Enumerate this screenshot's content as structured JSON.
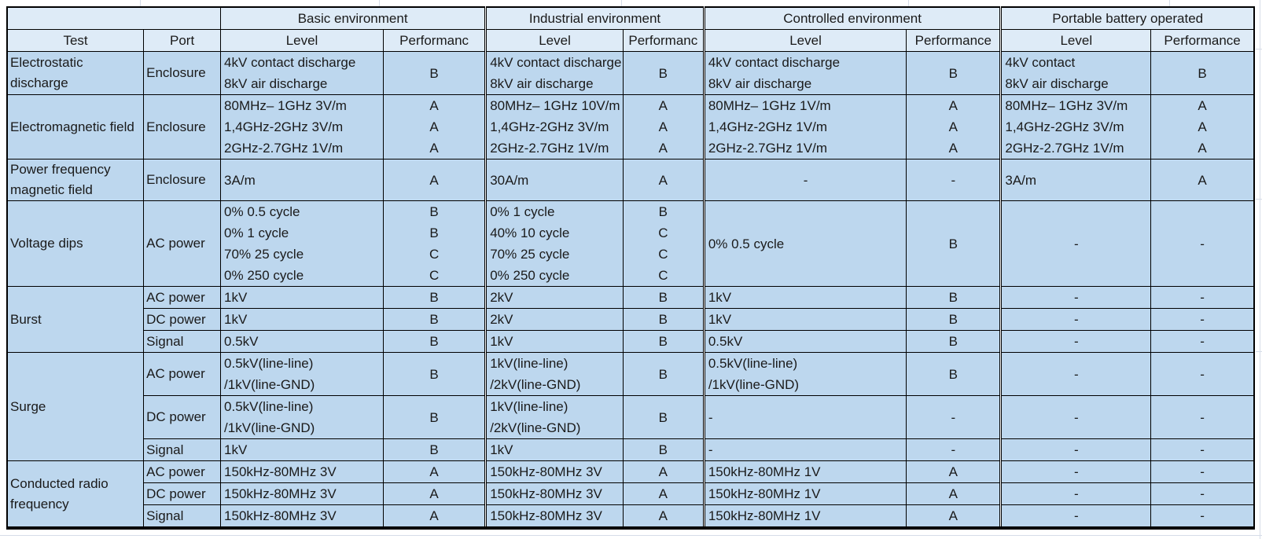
{
  "colors": {
    "header_fill": "#DEEBF7",
    "body_fill": "#BDD7EE",
    "border": "#000000"
  },
  "table": {
    "test_header": "Test",
    "port_header": "Port",
    "env_groups": [
      {
        "label": "Basic environment",
        "level_header": "Level",
        "perf_header": "Performanc"
      },
      {
        "label": "Industrial environment",
        "level_header": "Level",
        "perf_header": "Performanc"
      },
      {
        "label": "Controlled environment",
        "level_header": "Level",
        "perf_header": "Performance"
      },
      {
        "label": "Portable battery operated",
        "level_header": "Level",
        "perf_header": "Performance"
      }
    ],
    "tests": [
      {
        "name": "Electrostatic discharge",
        "rows": [
          {
            "port": "Enclosure",
            "groups": [
              {
                "level": [
                  "4kV contact discharge",
                  "8kV air discharge"
                ],
                "perf": [
                  "B"
                ]
              },
              {
                "level": [
                  "4kV contact discharge",
                  "8kV air discharge"
                ],
                "perf": [
                  "B"
                ]
              },
              {
                "level": [
                  "4kV contact discharge",
                  "8kV air discharge"
                ],
                "perf": [
                  "B"
                ]
              },
              {
                "level": [
                  "4kV contact",
                  "8kV air discharge"
                ],
                "perf": [
                  "B"
                ]
              }
            ]
          }
        ]
      },
      {
        "name": "Electromagnetic field",
        "rows": [
          {
            "port": "Enclosure",
            "groups": [
              {
                "level": [
                  "80MHz– 1GHz 3V/m",
                  "1,4GHz-2GHz 3V/m",
                  "2GHz-2.7GHz 1V/m"
                ],
                "perf": [
                  "A",
                  "A",
                  "A"
                ]
              },
              {
                "level": [
                  "80MHz– 1GHz 10V/m",
                  "1,4GHz-2GHz 3V/m",
                  "2GHz-2.7GHz 1V/m"
                ],
                "perf": [
                  "A",
                  "A",
                  "A"
                ]
              },
              {
                "level": [
                  "80MHz– 1GHz 1V/m",
                  "1,4GHz-2GHz 1V/m",
                  "2GHz-2.7GHz 1V/m"
                ],
                "perf": [
                  "A",
                  "A",
                  "A"
                ]
              },
              {
                "level": [
                  "80MHz– 1GHz 3V/m",
                  "1,4GHz-2GHz 3V/m",
                  "2GHz-2.7GHz 1V/m"
                ],
                "perf": [
                  "A",
                  "A",
                  "A"
                ]
              }
            ]
          }
        ]
      },
      {
        "name": "Power frequency magnetic field",
        "rows": [
          {
            "port": "Enclosure",
            "groups": [
              {
                "level": [
                  "3A/m"
                ],
                "perf": [
                  "A"
                ]
              },
              {
                "level": [
                  "30A/m"
                ],
                "perf": [
                  "A"
                ]
              },
              {
                "level": [
                  "-"
                ],
                "center": true,
                "perf": [
                  "-"
                ]
              },
              {
                "level": [
                  "3A/m"
                ],
                "perf": [
                  "A"
                ]
              }
            ]
          }
        ]
      },
      {
        "name": "Voltage dips",
        "rows": [
          {
            "port": "AC power",
            "groups": [
              {
                "level": [
                  "0% 0.5 cycle",
                  "0% 1 cycle",
                  "70% 25 cycle",
                  "0% 250 cycle"
                ],
                "perf": [
                  "B",
                  "B",
                  "C",
                  "C"
                ]
              },
              {
                "level": [
                  "0% 1 cycle",
                  "40% 10 cycle",
                  "70% 25 cycle",
                  "0% 250 cycle"
                ],
                "perf": [
                  "B",
                  "C",
                  "C",
                  "C"
                ]
              },
              {
                "level": [
                  "0% 0.5 cycle"
                ],
                "perf": [
                  "B"
                ]
              },
              {
                "level": [
                  "-"
                ],
                "center": true,
                "perf": [
                  "-"
                ]
              }
            ]
          }
        ]
      },
      {
        "name": "Burst",
        "rows": [
          {
            "port": "AC power",
            "groups": [
              {
                "level": [
                  "1kV"
                ],
                "perf": [
                  "B"
                ]
              },
              {
                "level": [
                  "2kV"
                ],
                "perf": [
                  "B"
                ]
              },
              {
                "level": [
                  "1kV"
                ],
                "perf": [
                  "B"
                ]
              },
              {
                "level": [
                  "-"
                ],
                "center": true,
                "perf": [
                  "-"
                ]
              }
            ]
          },
          {
            "port": "DC power",
            "groups": [
              {
                "level": [
                  "1kV"
                ],
                "perf": [
                  "B"
                ]
              },
              {
                "level": [
                  "2kV"
                ],
                "perf": [
                  "B"
                ]
              },
              {
                "level": [
                  "1kV"
                ],
                "perf": [
                  "B"
                ]
              },
              {
                "level": [
                  "-"
                ],
                "center": true,
                "perf": [
                  "-"
                ]
              }
            ]
          },
          {
            "port": "Signal",
            "groups": [
              {
                "level": [
                  "0.5kV"
                ],
                "perf": [
                  "B"
                ]
              },
              {
                "level": [
                  "1kV"
                ],
                "perf": [
                  "B"
                ]
              },
              {
                "level": [
                  "0.5kV"
                ],
                "perf": [
                  "B"
                ]
              },
              {
                "level": [
                  "-"
                ],
                "center": true,
                "perf": [
                  "-"
                ]
              }
            ]
          }
        ]
      },
      {
        "name": "Surge",
        "rows": [
          {
            "port": "AC power",
            "groups": [
              {
                "level": [
                  "0.5kV(line-line)",
                  "/1kV(line-GND)"
                ],
                "perf": [
                  "B"
                ]
              },
              {
                "level": [
                  "1kV(line-line)",
                  "/2kV(line-GND)"
                ],
                "perf": [
                  "B"
                ]
              },
              {
                "level": [
                  "0.5kV(line-line)",
                  "/1kV(line-GND)"
                ],
                "perf": [
                  "B"
                ]
              },
              {
                "level": [
                  "-"
                ],
                "center": true,
                "perf": [
                  "-"
                ]
              }
            ]
          },
          {
            "port": "DC power",
            "groups": [
              {
                "level": [
                  "0.5kV(line-line)",
                  "/1kV(line-GND)"
                ],
                "perf": [
                  "B"
                ]
              },
              {
                "level": [
                  "1kV(line-line)",
                  "/2kV(line-GND)"
                ],
                "perf": [
                  "B"
                ]
              },
              {
                "level": [
                  "-"
                ],
                "perf": [
                  "-"
                ]
              },
              {
                "level": [
                  "-"
                ],
                "center": true,
                "perf": [
                  "-"
                ]
              }
            ]
          },
          {
            "port": "Signal",
            "groups": [
              {
                "level": [
                  "1kV"
                ],
                "perf": [
                  "B"
                ]
              },
              {
                "level": [
                  "1kV"
                ],
                "perf": [
                  "B"
                ]
              },
              {
                "level": [
                  "-"
                ],
                "perf": [
                  "-"
                ]
              },
              {
                "level": [
                  "-"
                ],
                "center": true,
                "perf": [
                  "-"
                ]
              }
            ]
          }
        ]
      },
      {
        "name": "Conducted radio frequency",
        "rows": [
          {
            "port": "AC power",
            "groups": [
              {
                "level": [
                  "150kHz-80MHz 3V"
                ],
                "perf": [
                  "A"
                ]
              },
              {
                "level": [
                  "150kHz-80MHz 3V"
                ],
                "perf": [
                  "A"
                ]
              },
              {
                "level": [
                  "150kHz-80MHz 1V"
                ],
                "perf": [
                  "A"
                ]
              },
              {
                "level": [
                  "-"
                ],
                "center": true,
                "perf": [
                  "-"
                ]
              }
            ]
          },
          {
            "port": "DC power",
            "groups": [
              {
                "level": [
                  "150kHz-80MHz 3V"
                ],
                "perf": [
                  "A"
                ]
              },
              {
                "level": [
                  "150kHz-80MHz 3V"
                ],
                "perf": [
                  "A"
                ]
              },
              {
                "level": [
                  "150kHz-80MHz 1V"
                ],
                "perf": [
                  "A"
                ]
              },
              {
                "level": [
                  "-"
                ],
                "center": true,
                "perf": [
                  "-"
                ]
              }
            ]
          },
          {
            "port": "Signal",
            "groups": [
              {
                "level": [
                  "150kHz-80MHz 3V"
                ],
                "perf": [
                  "A"
                ]
              },
              {
                "level": [
                  "150kHz-80MHz 3V"
                ],
                "perf": [
                  "A"
                ]
              },
              {
                "level": [
                  "150kHz-80MHz 1V"
                ],
                "perf": [
                  "A"
                ]
              },
              {
                "level": [
                  "-"
                ],
                "center": true,
                "perf": [
                  "-"
                ]
              }
            ]
          }
        ]
      }
    ]
  }
}
